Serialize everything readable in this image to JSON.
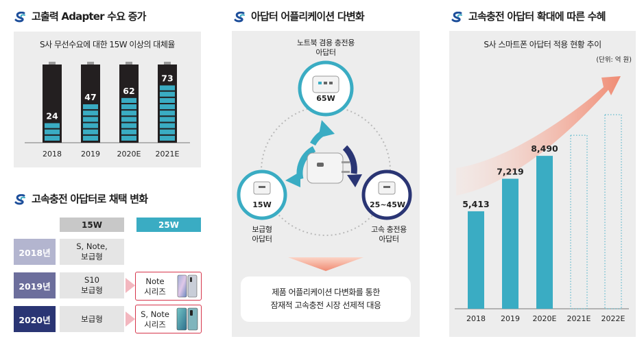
{
  "left": {
    "title": "고출력 Adapter 수요 증가",
    "panel_title": "S사 무선수요에 대한 15W 이상의 대체율",
    "bottom_title": "고속충전 아답터로 채택 변화"
  },
  "middle": {
    "title": "아답터 어플리케이션 다변화",
    "top_label_1": "노트북 겸용 충전용",
    "top_label_2": "아답터",
    "top_watt": "65W",
    "left_watt": "15W",
    "left_label_1": "보급형",
    "left_label_2": "아답터",
    "right_watt": "25~45W",
    "right_label_1": "고속 충전용",
    "right_label_2": "아답터",
    "bottom_line_1": "제품 어플리케이션 다변화를 통한",
    "bottom_line_2": "잠재적 고속충전 시장 선제적 대응"
  },
  "right": {
    "title": "고속충전 아답터 확대에 따른 수혜",
    "panel_title": "S사 스마트폰 아답터 적용 현황 추이",
    "unit": "(단위: 억 원)"
  },
  "adoption_table": {
    "headers": [
      "15W",
      "25W"
    ],
    "rows": [
      {
        "year": "2018년",
        "w15_line1": "S, Note,",
        "w15_line2": "보급형",
        "w25_line1": "",
        "w25_line2": ""
      },
      {
        "year": "2019년",
        "w15_line1": "S10",
        "w15_line2": "보급형",
        "w25_line1": "Note",
        "w25_line2": "시리즈"
      },
      {
        "year": "2020년",
        "w15_line1": "보급형",
        "w15_line2": "",
        "w25_line1": "S, Note",
        "w25_line2": "시리즈"
      }
    ]
  },
  "chart_data": [
    {
      "type": "bar",
      "title": "S사 무선수요에 대한 15W 이상의 대체율",
      "categories": [
        "2018",
        "2019",
        "2020E",
        "2021E"
      ],
      "values": [
        24,
        47,
        62,
        73
      ],
      "ylim": [
        0,
        100
      ],
      "colors": {
        "fill": "#3aacc3",
        "battery": "#231f20"
      }
    },
    {
      "type": "bar",
      "title": "S사 스마트폰 아답터 적용 현황 추이",
      "ylabel": "(단위: 억 원)",
      "categories": [
        "2018",
        "2019",
        "2020E",
        "2021E",
        "2022E"
      ],
      "values": [
        5413,
        7219,
        8490,
        null,
        null
      ],
      "labels": [
        "5,413",
        "7,219",
        "8,490",
        "",
        ""
      ],
      "ylim": [
        0,
        12000
      ],
      "colors": {
        "bar": "#3aacc3",
        "arrow": "#f08b73"
      }
    }
  ]
}
